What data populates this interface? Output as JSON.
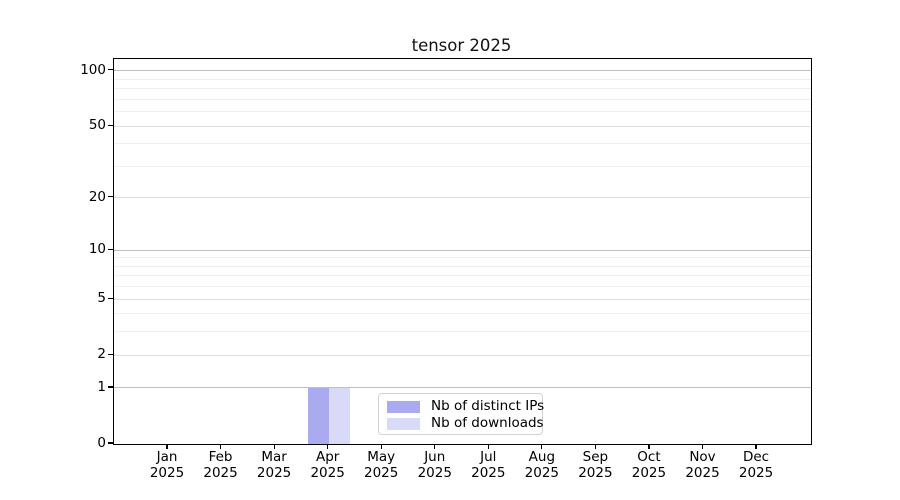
{
  "title": "tensor 2025",
  "chart_data": {
    "type": "bar",
    "title": "tensor 2025",
    "categories": [
      "Jan 2025",
      "Feb 2025",
      "Mar 2025",
      "Apr 2025",
      "May 2025",
      "Jun 2025",
      "Jul 2025",
      "Aug 2025",
      "Sep 2025",
      "Oct 2025",
      "Nov 2025",
      "Dec 2025"
    ],
    "x_tick_months": [
      "Jan",
      "Feb",
      "Mar",
      "Apr",
      "May",
      "Jun",
      "Jul",
      "Aug",
      "Sep",
      "Oct",
      "Nov",
      "Dec"
    ],
    "x_tick_year": "2025",
    "series": [
      {
        "name": "Nb of distinct IPs",
        "color": "#aaaaf0",
        "values": [
          0,
          0,
          0,
          1,
          0,
          0,
          0,
          0,
          0,
          0,
          0,
          0
        ]
      },
      {
        "name": "Nb of downloads",
        "color": "#d9d9f8",
        "values": [
          0,
          0,
          0,
          1,
          0,
          0,
          0,
          0,
          0,
          0,
          0,
          0
        ]
      }
    ],
    "yscale": "log1p",
    "ylim": [
      0,
      116
    ],
    "y_major_ticks": [
      0,
      1,
      2,
      5,
      10,
      20,
      50,
      100
    ],
    "y_decade_ticks": [
      1,
      10,
      100
    ],
    "y_minor_ticks": [
      3,
      4,
      6,
      7,
      8,
      9,
      30,
      40,
      60,
      70,
      80,
      90
    ],
    "grid": "both",
    "legend_position": "lower center"
  },
  "colors": {
    "decade_grid": "#bfbfbf",
    "major_grid": "#dedede",
    "minor_grid": "#eeeeee",
    "spine": "#000000",
    "legend_border": "#d3d3d3",
    "background": "#ffffff"
  }
}
